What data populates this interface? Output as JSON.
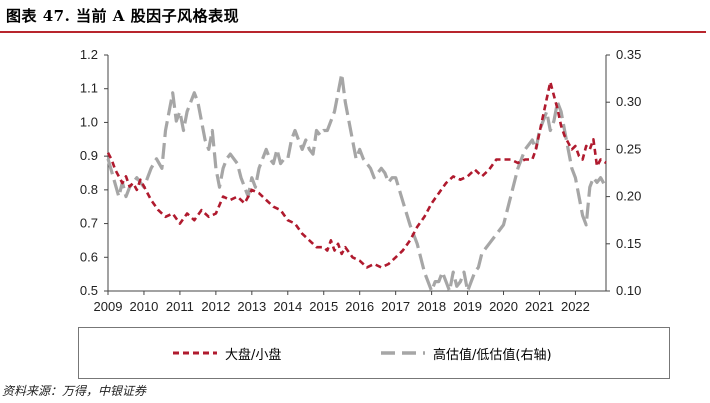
{
  "title": "图表 47. 当前 A 股因子风格表现",
  "source": "资料来源：万得，中银证券",
  "colors": {
    "accent_rule": "#b8252d",
    "series_red": "#b01a2e",
    "series_gray": "#a6a6a6"
  },
  "chart_data": {
    "type": "line",
    "x_ticks": [
      "2009",
      "2010",
      "2011",
      "2012",
      "2013",
      "2014",
      "2015",
      "2016",
      "2017",
      "2018",
      "2019",
      "2020",
      "2021",
      "2022"
    ],
    "xlim": [
      2009.0,
      2022.85
    ],
    "left_axis": {
      "ylim": [
        0.5,
        1.2
      ],
      "ticks": [
        "0.5",
        "0.6",
        "0.7",
        "0.8",
        "0.9",
        "1.0",
        "1.1",
        "1.2"
      ]
    },
    "right_axis": {
      "ylim": [
        0.1,
        0.35
      ],
      "ticks": [
        "0.10",
        "0.15",
        "0.20",
        "0.25",
        "0.30",
        "0.35"
      ]
    },
    "grid": false,
    "legend_position": "bottom",
    "series": [
      {
        "name": "大盘/小盘",
        "axis": "left",
        "style": "dashed",
        "color": "#b01a2e",
        "x": [
          2009.0,
          2009.1,
          2009.2,
          2009.3,
          2009.4,
          2009.5,
          2009.6,
          2009.7,
          2009.8,
          2009.9,
          2010.0,
          2010.2,
          2010.4,
          2010.6,
          2010.8,
          2011.0,
          2011.2,
          2011.4,
          2011.6,
          2011.8,
          2012.0,
          2012.2,
          2012.4,
          2012.6,
          2012.8,
          2013.0,
          2013.2,
          2013.4,
          2013.6,
          2013.8,
          2014.0,
          2014.2,
          2014.4,
          2014.6,
          2014.8,
          2015.0,
          2015.1,
          2015.2,
          2015.3,
          2015.4,
          2015.5,
          2015.6,
          2015.8,
          2016.0,
          2016.2,
          2016.4,
          2016.6,
          2016.8,
          2017.0,
          2017.2,
          2017.4,
          2017.6,
          2017.8,
          2018.0,
          2018.2,
          2018.4,
          2018.6,
          2018.8,
          2019.0,
          2019.2,
          2019.4,
          2019.6,
          2019.8,
          2020.0,
          2020.2,
          2020.4,
          2020.6,
          2020.8,
          2020.9,
          2021.0,
          2021.1,
          2021.2,
          2021.3,
          2021.4,
          2021.5,
          2021.6,
          2021.7,
          2021.8,
          2021.9,
          2022.0,
          2022.1,
          2022.2,
          2022.3,
          2022.4,
          2022.5,
          2022.6,
          2022.7,
          2022.85
        ],
        "values": [
          0.91,
          0.89,
          0.86,
          0.84,
          0.82,
          0.84,
          0.81,
          0.82,
          0.8,
          0.83,
          0.81,
          0.77,
          0.74,
          0.72,
          0.73,
          0.7,
          0.73,
          0.71,
          0.74,
          0.72,
          0.73,
          0.78,
          0.77,
          0.78,
          0.76,
          0.8,
          0.79,
          0.77,
          0.75,
          0.74,
          0.71,
          0.7,
          0.67,
          0.65,
          0.63,
          0.63,
          0.62,
          0.65,
          0.62,
          0.64,
          0.61,
          0.63,
          0.6,
          0.59,
          0.57,
          0.58,
          0.57,
          0.58,
          0.6,
          0.62,
          0.65,
          0.69,
          0.72,
          0.76,
          0.79,
          0.82,
          0.84,
          0.83,
          0.84,
          0.86,
          0.84,
          0.86,
          0.89,
          0.89,
          0.89,
          0.88,
          0.89,
          0.89,
          0.92,
          0.97,
          1.02,
          1.07,
          1.12,
          1.08,
          1.04,
          0.99,
          0.96,
          0.94,
          0.92,
          0.93,
          0.9,
          0.89,
          0.93,
          0.92,
          0.95,
          0.87,
          0.89,
          0.88
        ]
      },
      {
        "name": "高估值/低估值(右轴)",
        "axis": "right",
        "style": "dashed",
        "color": "#a6a6a6",
        "x": [
          2009.0,
          2009.15,
          2009.3,
          2009.4,
          2009.5,
          2009.6,
          2009.8,
          2010.0,
          2010.2,
          2010.35,
          2010.5,
          2010.6,
          2010.7,
          2010.8,
          2010.9,
          2011.0,
          2011.1,
          2011.2,
          2011.3,
          2011.4,
          2011.5,
          2011.6,
          2011.7,
          2011.8,
          2011.9,
          2012.0,
          2012.1,
          2012.2,
          2012.3,
          2012.4,
          2012.5,
          2012.6,
          2012.7,
          2012.8,
          2012.9,
          2013.0,
          2013.1,
          2013.2,
          2013.3,
          2013.4,
          2013.5,
          2013.6,
          2013.7,
          2013.8,
          2013.9,
          2014.0,
          2014.1,
          2014.2,
          2014.3,
          2014.4,
          2014.5,
          2014.6,
          2014.7,
          2014.8,
          2014.9,
          2015.0,
          2015.1,
          2015.2,
          2015.3,
          2015.4,
          2015.5,
          2015.6,
          2015.7,
          2015.8,
          2015.9,
          2016.0,
          2016.1,
          2016.2,
          2016.3,
          2016.4,
          2016.5,
          2016.6,
          2016.7,
          2016.8,
          2016.9,
          2017.0,
          2017.2,
          2017.4,
          2017.6,
          2017.8,
          2018.0,
          2018.1,
          2018.2,
          2018.3,
          2018.4,
          2018.5,
          2018.6,
          2018.7,
          2018.8,
          2018.9,
          2019.0,
          2019.1,
          2019.2,
          2019.3,
          2019.4,
          2019.5,
          2019.6,
          2019.8,
          2020.0,
          2020.2,
          2020.4,
          2020.6,
          2020.8,
          2020.9,
          2021.0,
          2021.1,
          2021.2,
          2021.3,
          2021.4,
          2021.5,
          2021.6,
          2021.7,
          2021.8,
          2021.9,
          2022.0,
          2022.1,
          2022.2,
          2022.3,
          2022.4,
          2022.5,
          2022.6,
          2022.7,
          2022.85
        ],
        "values": [
          0.24,
          0.22,
          0.2,
          0.215,
          0.2,
          0.21,
          0.22,
          0.21,
          0.23,
          0.24,
          0.23,
          0.27,
          0.29,
          0.31,
          0.28,
          0.29,
          0.27,
          0.29,
          0.3,
          0.31,
          0.3,
          0.28,
          0.26,
          0.25,
          0.27,
          0.23,
          0.21,
          0.23,
          0.24,
          0.245,
          0.24,
          0.235,
          0.22,
          0.21,
          0.2,
          0.22,
          0.21,
          0.23,
          0.24,
          0.25,
          0.24,
          0.235,
          0.25,
          0.235,
          0.24,
          0.24,
          0.26,
          0.27,
          0.26,
          0.25,
          0.26,
          0.25,
          0.245,
          0.27,
          0.265,
          0.27,
          0.27,
          0.28,
          0.29,
          0.31,
          0.33,
          0.3,
          0.28,
          0.26,
          0.24,
          0.25,
          0.24,
          0.235,
          0.23,
          0.22,
          0.225,
          0.23,
          0.225,
          0.215,
          0.22,
          0.22,
          0.195,
          0.17,
          0.15,
          0.12,
          0.1,
          0.11,
          0.11,
          0.12,
          0.11,
          0.1,
          0.12,
          0.105,
          0.11,
          0.12,
          0.1,
          0.11,
          0.12,
          0.125,
          0.14,
          0.145,
          0.15,
          0.16,
          0.17,
          0.2,
          0.23,
          0.25,
          0.26,
          0.25,
          0.27,
          0.28,
          0.29,
          0.27,
          0.28,
          0.3,
          0.29,
          0.27,
          0.25,
          0.23,
          0.22,
          0.2,
          0.18,
          0.17,
          0.21,
          0.22,
          0.215,
          0.22,
          0.21
        ]
      }
    ]
  }
}
